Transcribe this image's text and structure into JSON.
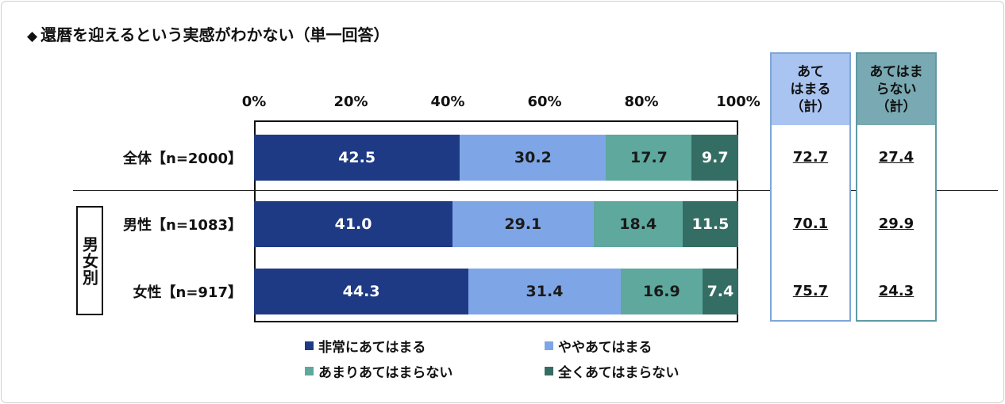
{
  "title": "還暦を迎えるという実感がわかない（単一回答）",
  "title_mark": "◆",
  "group_label": "男女別",
  "summary": {
    "agree_header": "あて\nはまる\n（計）",
    "disagree_header": "あてはま\nらない\n（計）",
    "agree_color": "#a9c4f0",
    "disagree_color": "#79a9b2"
  },
  "chart_data": {
    "type": "bar",
    "orientation": "horizontal",
    "stacked": true,
    "xlim": [
      0,
      100
    ],
    "x_ticks": [
      "0%",
      "20%",
      "40%",
      "60%",
      "80%",
      "100%"
    ],
    "categories": [
      "全体【n=2000】",
      "男性【n=1083】",
      "女性【n=917】"
    ],
    "series": [
      {
        "name": "非常にあてはまる",
        "color": "#1f3a84",
        "values": [
          42.5,
          41.0,
          44.3
        ],
        "labels": [
          "42.5",
          "41.0",
          "44.3"
        ]
      },
      {
        "name": "ややあてはまる",
        "color": "#7ea6e6",
        "values": [
          30.2,
          29.1,
          31.4
        ],
        "labels": [
          "30.2",
          "29.1",
          "31.4"
        ]
      },
      {
        "name": "あまりあてはまらない",
        "color": "#5ea89d",
        "values": [
          17.7,
          18.4,
          16.9
        ],
        "labels": [
          "17.7",
          "18.4",
          "16.9"
        ]
      },
      {
        "name": "全くあてはまらない",
        "color": "#346d63",
        "values": [
          9.7,
          11.5,
          7.4
        ],
        "labels": [
          "9.7",
          "11.5",
          "7.4"
        ]
      }
    ],
    "agree_total": [
      "72.7",
      "70.1",
      "75.7"
    ],
    "disagree_total": [
      "27.4",
      "29.9",
      "24.3"
    ],
    "grid": false
  }
}
